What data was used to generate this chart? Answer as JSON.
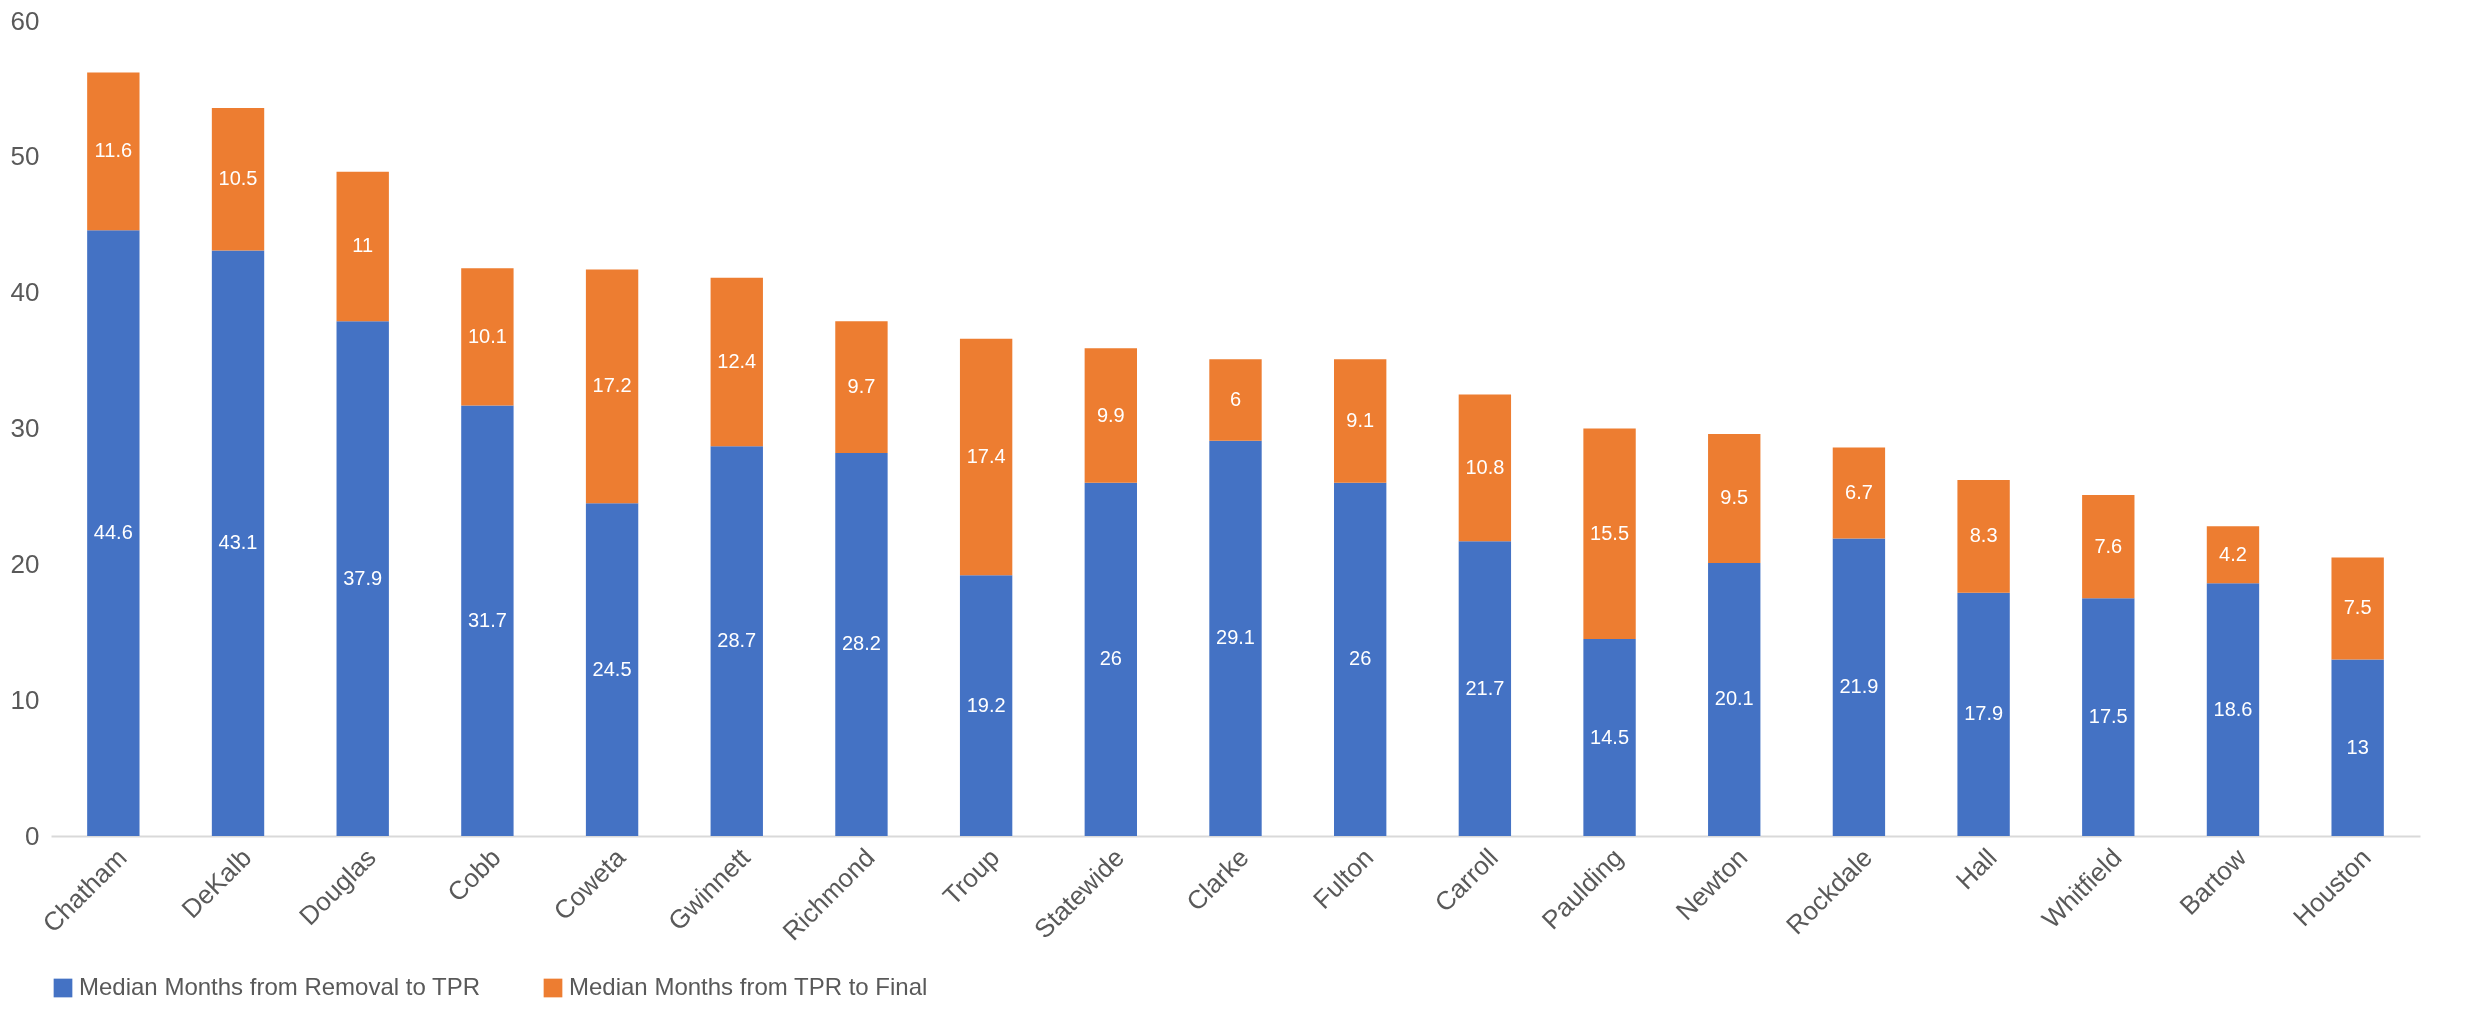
{
  "chart_data": {
    "type": "bar",
    "stacked": true,
    "categories": [
      "Chatham",
      "DeKalb",
      "Douglas",
      "Cobb",
      "Coweta",
      "Gwinnett",
      "Richmond",
      "Troup",
      "Statewide",
      "Clarke",
      "Fulton",
      "Carroll",
      "Paulding",
      "Newton",
      "Rockdale",
      "Hall",
      "Whitfield",
      "Bartow",
      "Houston"
    ],
    "series": [
      {
        "name": "Median Months from Removal to TPR",
        "color": "#4472c4",
        "values": [
          44.6,
          43.1,
          37.9,
          31.7,
          24.5,
          28.7,
          28.2,
          19.2,
          26,
          29.1,
          26,
          21.7,
          14.5,
          20.1,
          21.9,
          17.9,
          17.5,
          18.6,
          13
        ]
      },
      {
        "name": "Median Months from TPR to Final",
        "color": "#ed7d31",
        "values": [
          11.6,
          10.5,
          11,
          10.1,
          17.2,
          12.4,
          9.7,
          17.4,
          9.9,
          6,
          9.1,
          10.8,
          15.5,
          9.5,
          6.7,
          8.3,
          7.6,
          4.2,
          7.5
        ]
      }
    ],
    "ylim": [
      0,
      60
    ],
    "yticks": [
      0,
      10,
      20,
      30,
      40,
      50,
      60
    ],
    "grid": false,
    "legend": "bottom",
    "data_labels": true
  }
}
